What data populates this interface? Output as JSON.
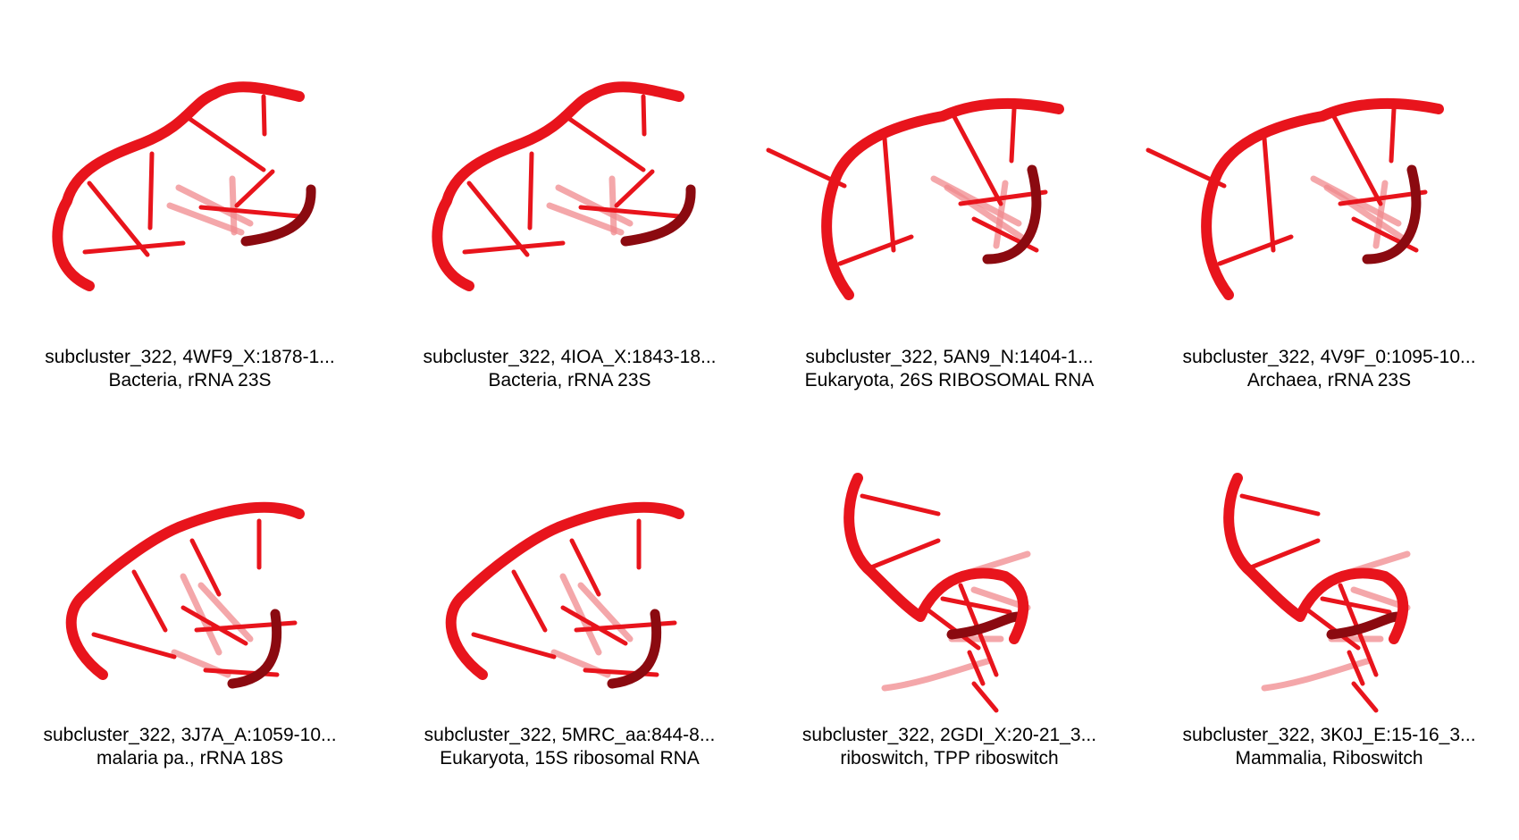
{
  "panels": [
    {
      "line1": "subcluster_322, 4WF9_X:1878-1...",
      "line2": "Bacteria, rRNA 23S",
      "shape": "a"
    },
    {
      "line1": "subcluster_322, 4IOA_X:1843-18...",
      "line2": "Bacteria, rRNA 23S",
      "shape": "a"
    },
    {
      "line1": "subcluster_322, 5AN9_N:1404-1...",
      "line2": "Eukaryota, 26S RIBOSOMAL RNA",
      "shape": "b"
    },
    {
      "line1": "subcluster_322, 4V9F_0:1095-10...",
      "line2": "Archaea, rRNA 23S",
      "shape": "b"
    },
    {
      "line1": "subcluster_322, 3J7A_A:1059-10...",
      "line2": "malaria pa., rRNA 18S",
      "shape": "c"
    },
    {
      "line1": "subcluster_322, 5MRC_aa:844-8...",
      "line2": "Eukaryota, 15S ribosomal RNA",
      "shape": "c"
    },
    {
      "line1": "subcluster_322, 2GDI_X:20-21_3...",
      "line2": "riboswitch, TPP riboswitch",
      "shape": "d"
    },
    {
      "line1": "subcluster_322, 3K0J_E:15-16_3...",
      "line2": "Mammalia, Riboswitch",
      "shape": "d"
    }
  ],
  "colors": {
    "strand": "#e8141c",
    "dark": "#8b0a10",
    "faded": "#f08a8e"
  }
}
